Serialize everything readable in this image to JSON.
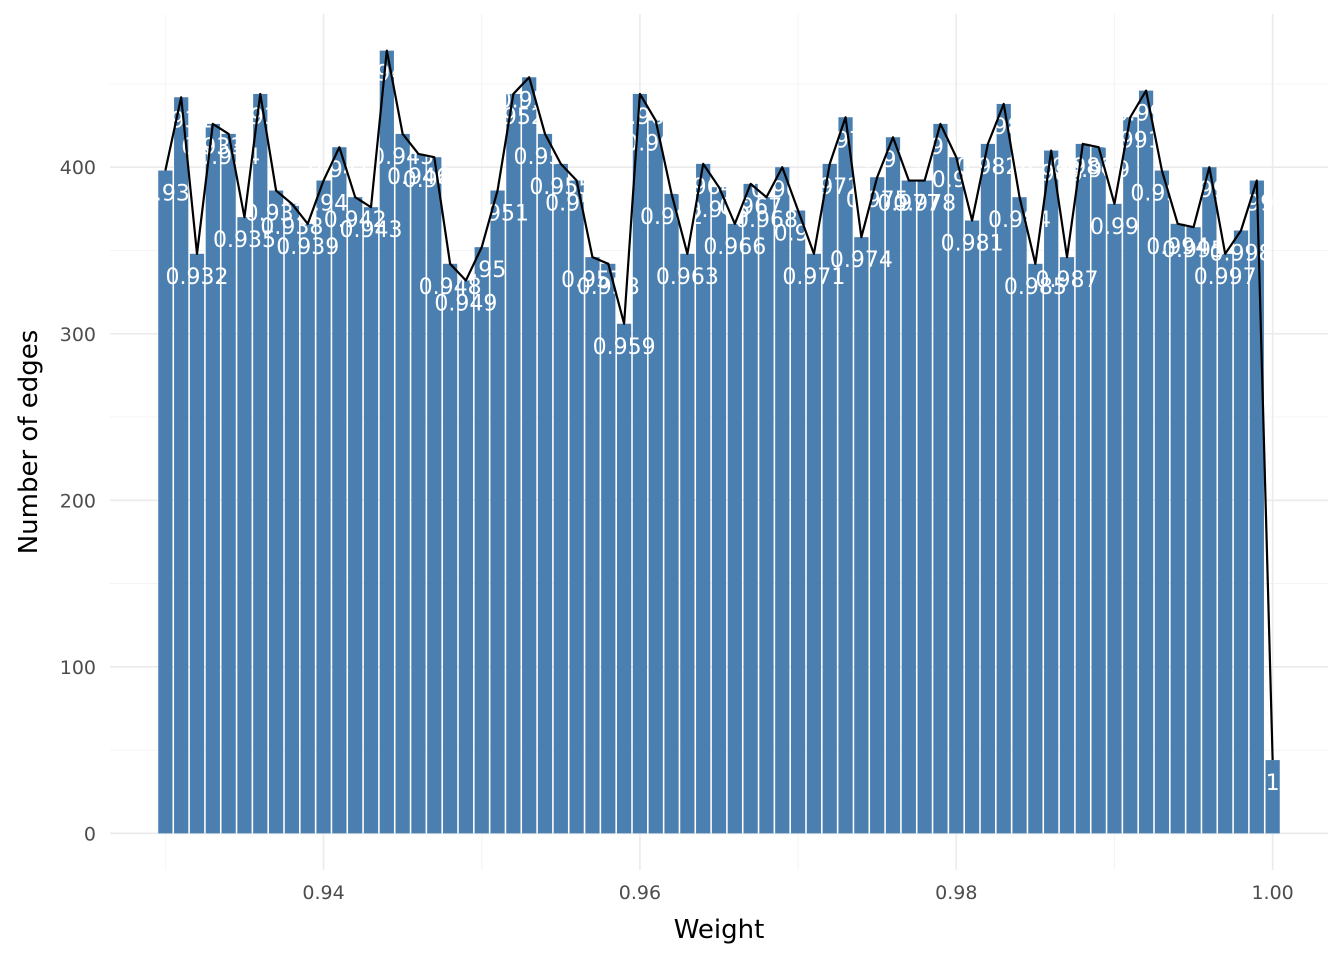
{
  "colors": {
    "bar": "#4a7fb0",
    "line": "#000000",
    "grid_major": "#ebebeb",
    "grid_minor": "#f4f4f4",
    "bar_label": "#ffffff"
  },
  "chart_data": {
    "type": "bar",
    "xlabel": "Weight",
    "ylabel": "Number of edges",
    "xlim": [
      0.9265,
      1.0035
    ],
    "ylim": [
      -22,
      492
    ],
    "x_ticks": [
      0.94,
      0.96,
      0.98,
      1.0
    ],
    "x_tick_labels": [
      "0.94",
      "0.96",
      "0.98",
      "1.00"
    ],
    "y_ticks": [
      0,
      100,
      200,
      300,
      400
    ],
    "y_tick_labels": [
      "0",
      "100",
      "200",
      "300",
      "400"
    ],
    "grid": true,
    "series": [
      {
        "kind": "bar+line",
        "x": [
          0.93,
          0.931,
          0.932,
          0.933,
          0.934,
          0.935,
          0.936,
          0.937,
          0.938,
          0.939,
          0.94,
          0.941,
          0.942,
          0.943,
          0.944,
          0.945,
          0.946,
          0.947,
          0.948,
          0.949,
          0.95,
          0.951,
          0.952,
          0.953,
          0.954,
          0.955,
          0.956,
          0.957,
          0.958,
          0.959,
          0.96,
          0.961,
          0.962,
          0.963,
          0.964,
          0.965,
          0.966,
          0.967,
          0.968,
          0.969,
          0.97,
          0.971,
          0.972,
          0.973,
          0.974,
          0.975,
          0.976,
          0.977,
          0.978,
          0.979,
          0.98,
          0.981,
          0.982,
          0.983,
          0.984,
          0.985,
          0.986,
          0.987,
          0.988,
          0.989,
          0.99,
          0.991,
          0.992,
          0.993,
          0.994,
          0.995,
          0.996,
          0.997,
          0.998,
          0.999,
          1.0
        ],
        "values": [
          398,
          442,
          348,
          426,
          420,
          370,
          444,
          386,
          378,
          366,
          392,
          412,
          382,
          376,
          470,
          420,
          408,
          406,
          342,
          332,
          352,
          386,
          444,
          454,
          420,
          402,
          392,
          346,
          342,
          306,
          444,
          428,
          384,
          348,
          402,
          388,
          366,
          390,
          382,
          400,
          374,
          348,
          402,
          430,
          358,
          394,
          418,
          392,
          392,
          426,
          406,
          368,
          414,
          438,
          382,
          342,
          410,
          346,
          414,
          412,
          378,
          430,
          446,
          398,
          366,
          364,
          400,
          348,
          362,
          392,
          44
        ],
        "point_labels": [
          "0.93",
          "0.931",
          "0.932",
          "0.933",
          "0.934",
          "0.935",
          "0.936",
          "0.937",
          "0.938",
          "0.939",
          "0.94",
          "0.941",
          "0.942",
          "0.943",
          "0.944",
          "0.945",
          "0.946",
          "0.947",
          "0.948",
          "0.949",
          "0.95",
          "0.951",
          "0.952",
          "0.953",
          "0.954",
          "0.955",
          "0.956",
          "0.957",
          "0.958",
          "0.959",
          "0.96",
          "0.961",
          "0.962",
          "0.963",
          "0.964",
          "0.965",
          "0.966",
          "0.967",
          "0.968",
          "0.969",
          "0.97",
          "0.971",
          "0.972",
          "0.973",
          "0.974",
          "0.975",
          "0.976",
          "0.977",
          "0.978",
          "0.979",
          "0.98",
          "0.981",
          "0.982",
          "0.983",
          "0.984",
          "0.985",
          "0.986",
          "0.987",
          "0.988",
          "0.989",
          "0.99",
          "0.991",
          "0.992",
          "0.993",
          "0.994",
          "0.995",
          "0.996",
          "0.997",
          "0.998",
          "0.999",
          "1"
        ]
      }
    ]
  }
}
